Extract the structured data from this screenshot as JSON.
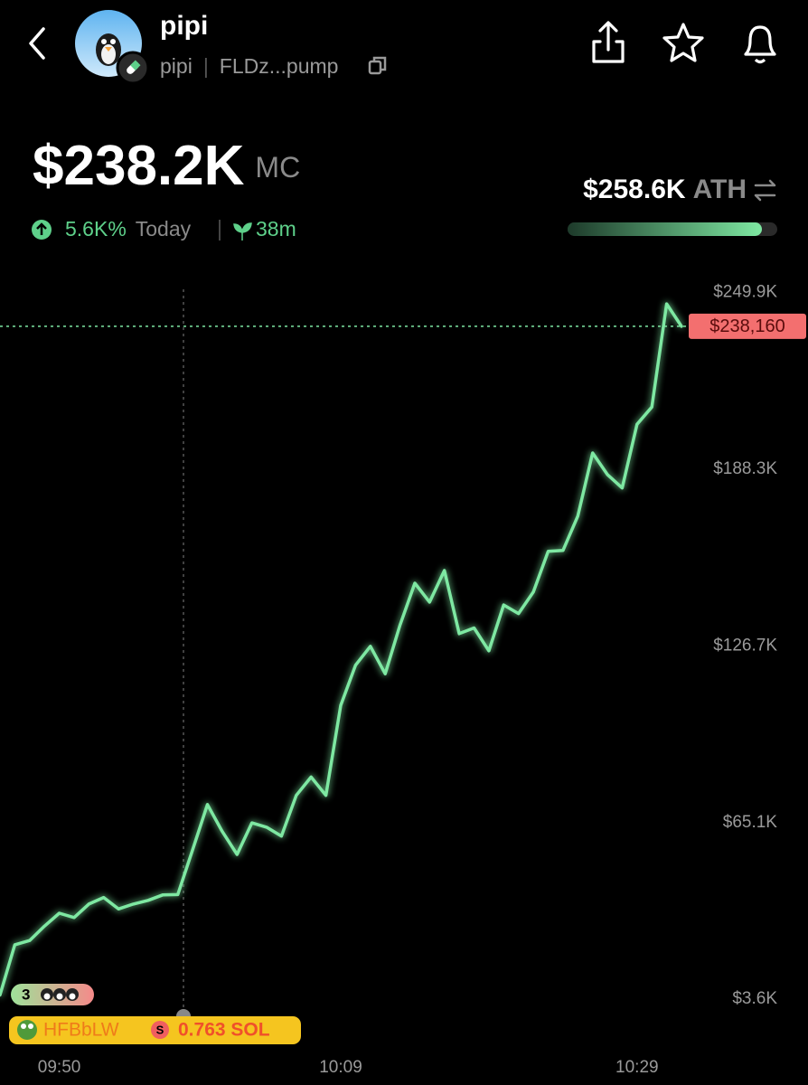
{
  "header": {
    "name": "pipi",
    "symbol": "pipi",
    "address": "FLDz...pump"
  },
  "stats": {
    "market_cap": "$238.2K",
    "market_cap_unit": "MC",
    "change": "5.6K%",
    "period": "Today",
    "age": "38m",
    "ath": "$258.6K",
    "ath_label": "ATH"
  },
  "chart_data": {
    "type": "line",
    "x": [
      "09:46",
      "09:47",
      "09:48",
      "09:49",
      "09:50",
      "09:51",
      "09:52",
      "09:53",
      "09:54",
      "09:55",
      "09:56",
      "09:57",
      "09:58",
      "09:59",
      "10:00",
      "10:01",
      "10:02",
      "10:03",
      "10:04",
      "10:05",
      "10:06",
      "10:07",
      "10:08",
      "10:09",
      "10:10",
      "10:11",
      "10:12",
      "10:13",
      "10:14",
      "10:15",
      "10:16",
      "10:17",
      "10:18",
      "10:19",
      "10:20",
      "10:21",
      "10:22",
      "10:23",
      "10:24",
      "10:25",
      "10:26",
      "10:27",
      "10:28",
      "10:29",
      "10:30",
      "10:31",
      "10:32"
    ],
    "series": [
      {
        "name": "pipi",
        "color": "#7ee8a2",
        "values": [
          5000,
          22500,
          24000,
          29000,
          33500,
          32000,
          36700,
          39000,
          35000,
          36700,
          38000,
          39900,
          40000,
          55600,
          71400,
          62000,
          54000,
          65000,
          63500,
          60400,
          74600,
          81000,
          74600,
          106000,
          120000,
          126600,
          117000,
          134000,
          148600,
          142000,
          153000,
          131000,
          133000,
          125000,
          141000,
          138000,
          145500,
          159700,
          160000,
          172000,
          194000,
          186500,
          181800,
          204000,
          210000,
          246000,
          238160
        ]
      }
    ],
    "xlim": [
      "09:46",
      "10:32"
    ],
    "xticks": [
      "09:50",
      "10:09",
      "10:29"
    ],
    "ylim": [
      -10000,
      258000
    ],
    "yticks": [
      {
        "value": 3600,
        "label": "$3.6K"
      },
      {
        "value": 65100,
        "label": "$65.1K"
      },
      {
        "value": 126700,
        "label": "$126.7K"
      },
      {
        "value": 188300,
        "label": "$188.3K"
      },
      {
        "value": 249900,
        "label": "$249.9K"
      }
    ],
    "current": {
      "value": 238160,
      "label": "$238,160"
    }
  },
  "badges": {
    "holders": "3",
    "trader": "HFBbLW",
    "currency_icon": "S",
    "amount": "0.763 SOL"
  }
}
